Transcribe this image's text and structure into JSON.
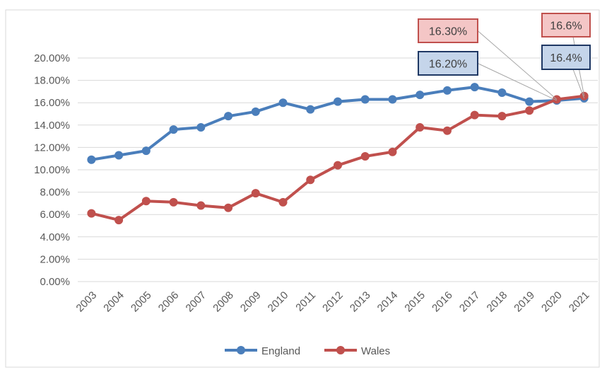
{
  "chart_data": {
    "type": "line",
    "x": [
      "2003",
      "2004",
      "2005",
      "2006",
      "2007",
      "2008",
      "2009",
      "2010",
      "2011",
      "2012",
      "2013",
      "2014",
      "2015",
      "2016",
      "2017",
      "2018",
      "2019",
      "2020",
      "2021"
    ],
    "series": [
      {
        "name": "England",
        "color": "#4a7ebb",
        "values": [
          10.9,
          11.3,
          11.7,
          13.6,
          13.8,
          14.8,
          15.2,
          16.0,
          15.4,
          16.1,
          16.3,
          16.3,
          16.7,
          17.1,
          17.4,
          16.9,
          16.1,
          16.2,
          16.4
        ]
      },
      {
        "name": "Wales",
        "color": "#c0504d",
        "values": [
          6.1,
          5.5,
          7.2,
          7.1,
          6.8,
          6.6,
          7.9,
          7.1,
          9.1,
          10.4,
          11.2,
          11.6,
          13.8,
          13.5,
          14.9,
          14.8,
          15.3,
          16.3,
          16.6
        ]
      }
    ],
    "y_ticks": [
      "0.00%",
      "2.00%",
      "4.00%",
      "6.00%",
      "8.00%",
      "10.00%",
      "12.00%",
      "14.00%",
      "16.00%",
      "18.00%",
      "20.00%"
    ],
    "ylim": [
      0,
      20
    ],
    "grid": true,
    "legend": "bottom",
    "annotations": [
      {
        "text": "16.30%",
        "series": "Wales",
        "x": "2020",
        "fill": "#f4c6c6",
        "border": "#c0504d"
      },
      {
        "text": "16.20%",
        "series": "England",
        "x": "2020",
        "fill": "#c5d5ea",
        "border": "#1f3864"
      },
      {
        "text": "16.6%",
        "series": "Wales",
        "x": "2021",
        "fill": "#f4c6c6",
        "border": "#c0504d"
      },
      {
        "text": "16.4%",
        "series": "England",
        "x": "2021",
        "fill": "#c5d5ea",
        "border": "#1f3864"
      }
    ]
  }
}
